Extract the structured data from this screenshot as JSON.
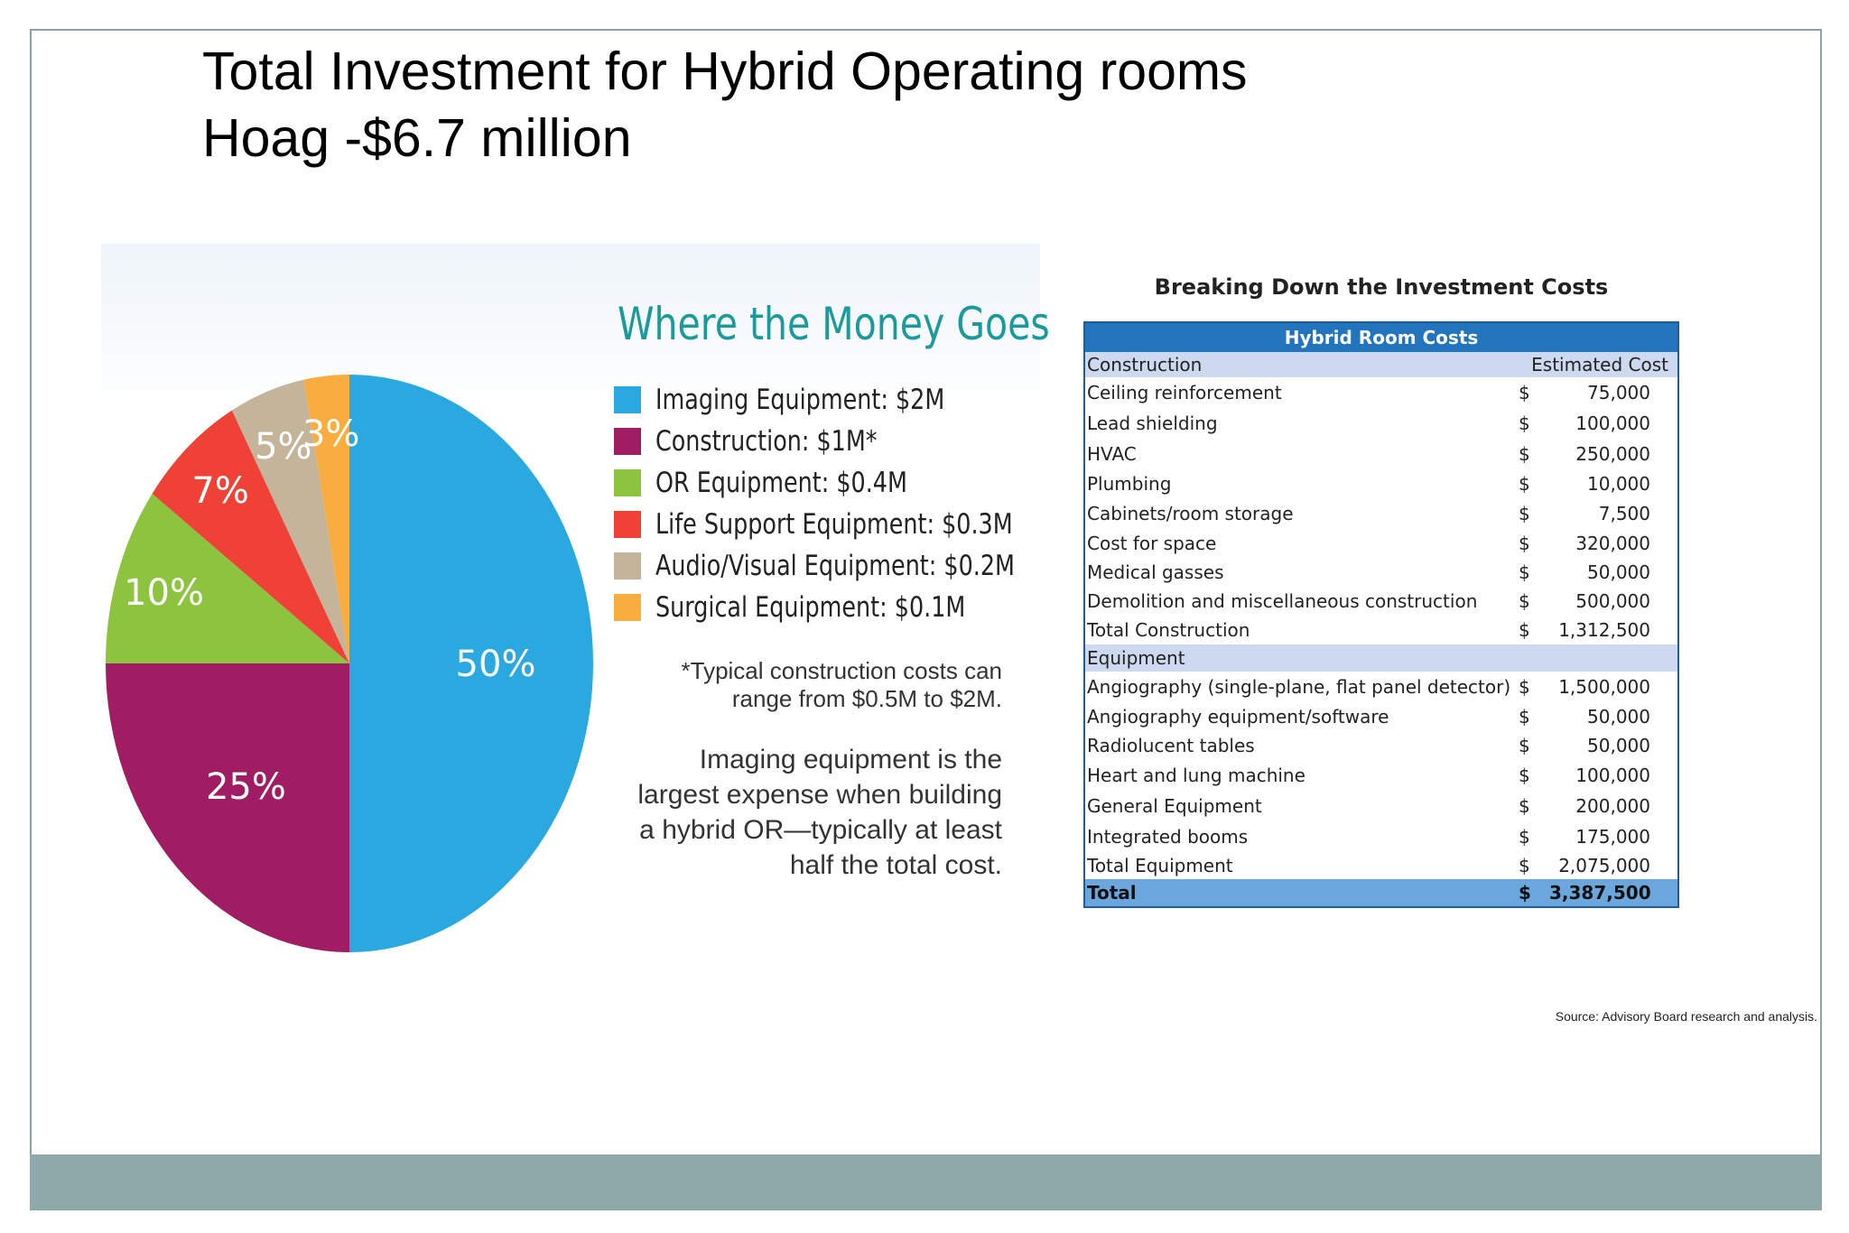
{
  "title": {
    "line1": "Total Investment for Hybrid Operating rooms",
    "line2": "Hoag -$6.7 million"
  },
  "infographic": {
    "heading": "Where the Money Goes",
    "footnote_lines": [
      "*Typical construction costs can",
      "range from $0.5M to $2M."
    ],
    "explanation_lines": [
      "Imaging equipment is the",
      "largest expense when building",
      "a hybrid OR—typically at least",
      "half the total cost."
    ]
  },
  "chart_data": {
    "type": "pie",
    "title": "Where the Money Goes",
    "slices": [
      {
        "label": "Imaging Equipment: $2M",
        "value": 50,
        "display": "50%",
        "color": "#29a9e0"
      },
      {
        "label": "Construction: $1M*",
        "value": 25,
        "display": "25%",
        "color": "#a01c63"
      },
      {
        "label": "OR Equipment: $0.4M",
        "value": 10,
        "display": "10%",
        "color": "#8dc43f"
      },
      {
        "label": "Life Support Equipment: $0.3M",
        "value": 7,
        "display": "7%",
        "color": "#ef4136"
      },
      {
        "label": "Audio/Visual Equipment: $0.2M",
        "value": 5,
        "display": "5%",
        "color": "#c4b49a"
      },
      {
        "label": "Surgical Equipment: $0.1M",
        "value": 3,
        "display": "3%",
        "color": "#faad3f"
      }
    ],
    "legend_position": "right"
  },
  "table": {
    "title": "Breaking Down the Investment Costs",
    "header": "Hybrid Room Costs",
    "construction_section": {
      "label": "Construction",
      "cost_header": "Estimated Cost"
    },
    "construction_rows": [
      {
        "label": "Ceiling reinforcement",
        "cur": "$",
        "amount": "75,000"
      },
      {
        "label": "Lead shielding",
        "cur": "$",
        "amount": "100,000"
      },
      {
        "label": "HVAC",
        "cur": "$",
        "amount": "250,000"
      },
      {
        "label": "Plumbing",
        "cur": "$",
        "amount": "10,000"
      },
      {
        "label": "Cabinets/room storage",
        "cur": "$",
        "amount": "7,500"
      },
      {
        "label": "Cost for space",
        "cur": "$",
        "amount": "320,000"
      },
      {
        "label": "Medical gasses",
        "cur": "$",
        "amount": "50,000"
      },
      {
        "label": "Demolition and miscellaneous construction",
        "cur": "$",
        "amount": "500,000"
      },
      {
        "label": "Total Construction",
        "cur": "$",
        "amount": "1,312,500"
      }
    ],
    "equipment_section": {
      "label": "Equipment"
    },
    "equipment_rows": [
      {
        "label": "Angiography (single-plane, flat panel detector)",
        "cur": "$",
        "amount": "1,500,000"
      },
      {
        "label": "Angiography equipment/software",
        "cur": "$",
        "amount": "50,000"
      },
      {
        "label": "Radiolucent tables",
        "cur": "$",
        "amount": "50,000"
      },
      {
        "label": "Heart and lung machine",
        "cur": "$",
        "amount": "100,000"
      },
      {
        "label": "General Equipment",
        "cur": "$",
        "amount": "200,000"
      },
      {
        "label": "Integrated booms",
        "cur": "$",
        "amount": "175,000"
      },
      {
        "label": "Total Equipment",
        "cur": "$",
        "amount": "2,075,000"
      }
    ],
    "total": {
      "label": "Total",
      "cur": "$",
      "amount": "3,387,500"
    }
  },
  "source": "Source: Advisory Board research and analysis."
}
